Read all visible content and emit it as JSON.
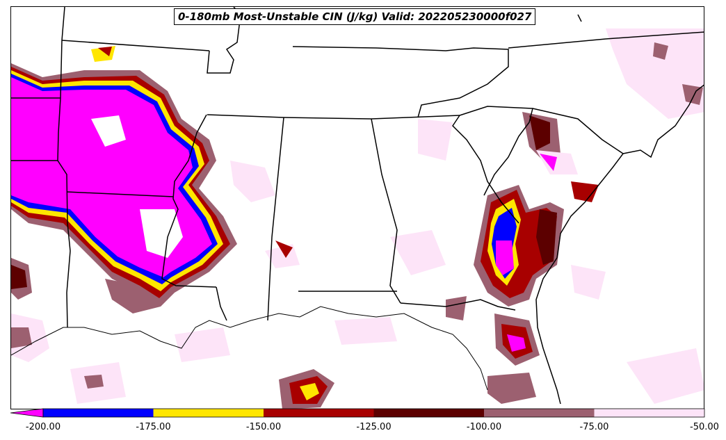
{
  "title": "0-180mb Most-Unstable CIN (J/kg) Valid: 202205230000f027",
  "colorbar": {
    "bins": [
      {
        "from": -200,
        "to": -175,
        "color": "#0000ff"
      },
      {
        "from": -175,
        "to": -150,
        "color": "#ffe600"
      },
      {
        "from": -150,
        "to": -125,
        "color": "#a80000"
      },
      {
        "from": -125,
        "to": -100,
        "color": "#5c0000"
      },
      {
        "from": -100,
        "to": -75,
        "color": "#9c6070"
      },
      {
        "from": -75,
        "to": -50,
        "color": "#fde4f8"
      }
    ],
    "extend_color": "#ff00ff",
    "tick_labels": [
      "-200.00",
      "-175.00",
      "-150.00",
      "-125.00",
      "-100.00",
      "-75.00",
      "-50.00"
    ]
  }
}
